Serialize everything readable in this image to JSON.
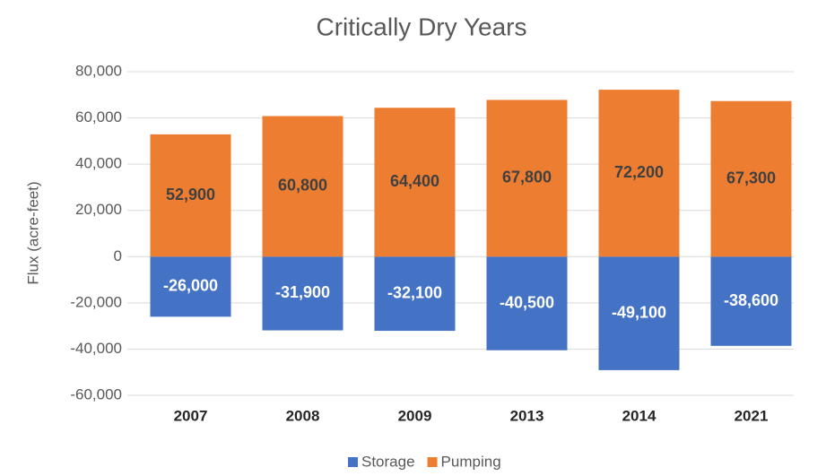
{
  "chart_data": {
    "type": "bar",
    "stacked": true,
    "title": "Critically Dry Years",
    "ylabel": "Flux (acre-feet)",
    "categories": [
      "2007",
      "2008",
      "2009",
      "2013",
      "2014",
      "2021"
    ],
    "series": [
      {
        "name": "Storage",
        "color": "#4472c4",
        "values": [
          -26000,
          -31900,
          -32100,
          -40500,
          -49100,
          -38600
        ],
        "value_labels": [
          "-26,000",
          "-31,900",
          "-32,100",
          "-40,500",
          "-49,100",
          "-38,600"
        ]
      },
      {
        "name": "Pumping",
        "color": "#ed7d31",
        "values": [
          52900,
          60800,
          64400,
          67800,
          72200,
          67300
        ],
        "value_labels": [
          "52,900",
          "60,800",
          "64,400",
          "67,800",
          "72,200",
          "67,300"
        ]
      }
    ],
    "ylim": [
      -60000,
      80000
    ],
    "yticks": [
      {
        "value": -60000,
        "label": "-60,000"
      },
      {
        "value": -40000,
        "label": "-40,000"
      },
      {
        "value": -20000,
        "label": "-20,000"
      },
      0,
      {
        "value": 20000,
        "label": "20,000"
      },
      {
        "value": 40000,
        "label": "40,000"
      },
      {
        "value": 60000,
        "label": "60,000"
      },
      {
        "value": 80000,
        "label": "80,000"
      }
    ],
    "grid": true,
    "legend": "bottom"
  }
}
